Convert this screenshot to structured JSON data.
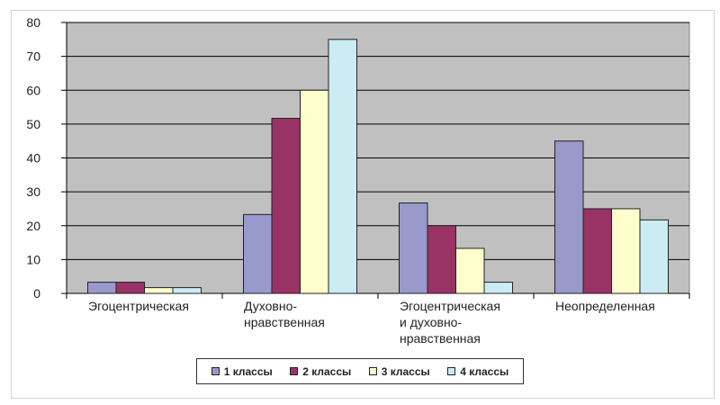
{
  "chart_data": {
    "type": "bar",
    "categories": [
      [
        "Эгоцентрическая"
      ],
      [
        "Духовно-",
        "нравственная"
      ],
      [
        "Эгоцентрическая",
        "и духовно-",
        "нравственная"
      ],
      [
        "Неопределенная"
      ]
    ],
    "series": [
      {
        "name": "1 классы",
        "color": "#9999cc",
        "values": [
          3.3,
          23.3,
          26.7,
          45
        ]
      },
      {
        "name": "2 классы",
        "color": "#993366",
        "values": [
          3.3,
          51.7,
          20,
          25
        ]
      },
      {
        "name": "3 классы",
        "color": "#ffffcc",
        "values": [
          1.7,
          60,
          13.3,
          25
        ]
      },
      {
        "name": "4 классы",
        "color": "#ccecf4",
        "values": [
          1.7,
          75,
          3.3,
          21.7
        ]
      }
    ],
    "ylim": [
      0,
      80
    ],
    "yticks": [
      0,
      10,
      20,
      30,
      40,
      50,
      60,
      70,
      80
    ],
    "grid": true,
    "plot_background": "#c0c0c0",
    "legend": "bottom"
  }
}
